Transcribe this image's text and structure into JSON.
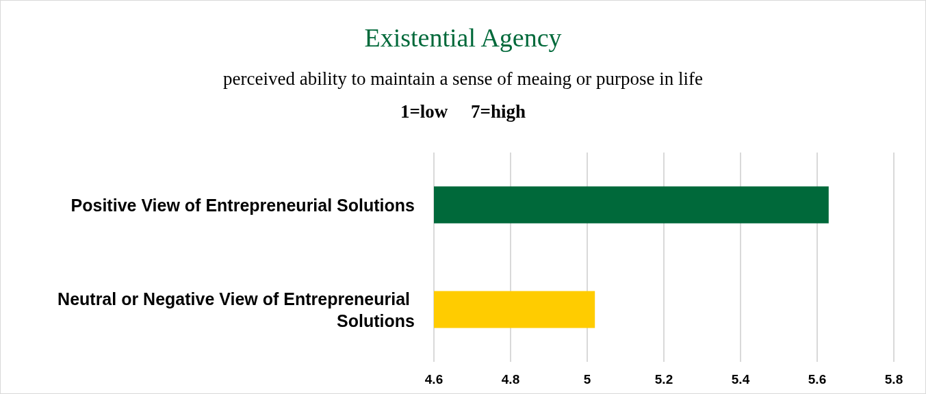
{
  "chart_data": {
    "type": "bar",
    "orientation": "horizontal",
    "title": "Existential Agency",
    "subtitle": "perceived ability to maintain a sense of meaing or purpose in life",
    "annotations": [
      "1=low     7=high"
    ],
    "categories": [
      "Positive View of Entrepreneurial Solutions",
      "Neutral or Negative View of Entrepreneurial Solutions"
    ],
    "values": [
      5.63,
      5.02
    ],
    "colors": [
      "#00693a",
      "#ffcc00"
    ],
    "xlim": [
      4.6,
      5.8
    ],
    "xticks": [
      4.6,
      4.8,
      5,
      5.2,
      5.4,
      5.6,
      5.8
    ],
    "grid": "x"
  }
}
